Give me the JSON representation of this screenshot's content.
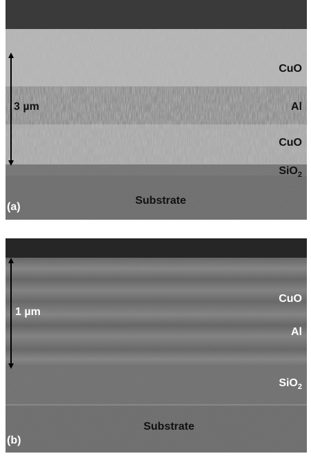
{
  "panels": [
    {
      "label": "(a)",
      "scale": "3 µm",
      "layers": [
        {
          "text": "CuO"
        },
        {
          "text": "Al"
        },
        {
          "text": "CuO"
        },
        {
          "text": "SiO",
          "sub": "2"
        }
      ],
      "substrate": "Substrate"
    },
    {
      "label": "(b)",
      "scale": "1 µm",
      "layers": [
        {
          "text": "CuO"
        },
        {
          "text": "Al"
        },
        {
          "text": "SiO",
          "sub": "2"
        }
      ],
      "substrate": "Substrate"
    }
  ]
}
